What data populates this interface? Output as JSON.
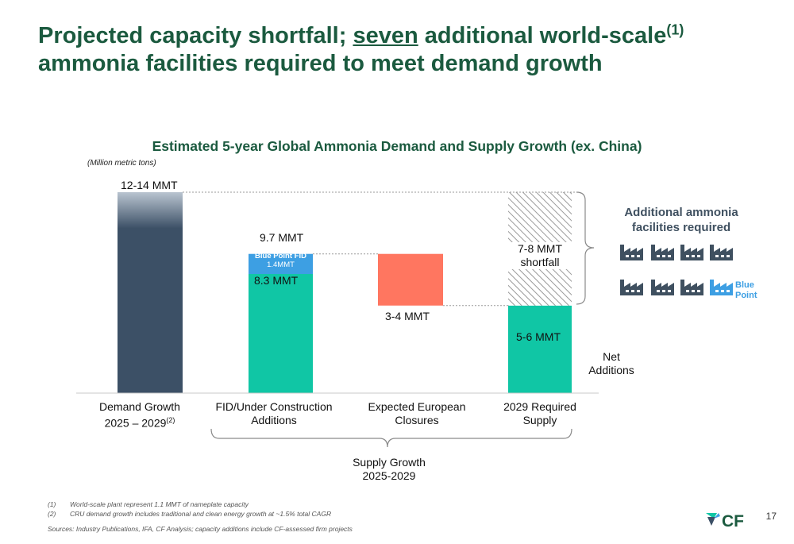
{
  "slide": {
    "title_part1": "Projected capacity shortfall; ",
    "title_emph": "seven",
    "title_part2": " additional world-scale",
    "title_sup": "(1)",
    "title_line2": "ammonia facilities required to meet demand growth",
    "page_number": "17"
  },
  "chart_data": {
    "type": "bar",
    "subtype": "waterfall",
    "title": "Estimated 5-year Global Ammonia Demand and Supply Growth (ex. China)",
    "units_note": "(Million metric tons)",
    "categories": [
      {
        "line1": "Demand Growth",
        "line2": "2025 – 2029",
        "sup": "(2)"
      },
      {
        "line1": "FID/Under Construction",
        "line2": "Additions",
        "sup": ""
      },
      {
        "line1": "Expected European",
        "line2": "Closures",
        "sup": ""
      },
      {
        "line1": "2029 Required",
        "line2": "Supply",
        "sup": ""
      }
    ],
    "ylim": [
      0,
      14
    ],
    "bars": [
      {
        "name": "Demand Growth",
        "base": 0,
        "value": 14,
        "color": "#3c5066",
        "label": "12-14 MMT"
      },
      {
        "name": "FID/Under Construction",
        "base": 0,
        "value": 8.3,
        "color": "#10c6a5",
        "label": "8.3 MMT"
      },
      {
        "name": "Blue Point FID",
        "base": 8.3,
        "value": 1.4,
        "color": "#3d9fe3",
        "label": "Blue Point FID",
        "sublabel": "1.4MMT"
      },
      {
        "name": "Expected European Closures",
        "base": 6.1,
        "value": 3.6,
        "color": "#ff7660",
        "label": "3-4 MMT"
      },
      {
        "name": "Net Additions",
        "base": 0,
        "value": 6.1,
        "color": "#10c6a5",
        "label": "5-6 MMT"
      },
      {
        "name": "Shortfall",
        "base": 6.1,
        "value": 7.9,
        "color": "#hatch",
        "label": "7-8 MMT",
        "label2": "shortfall"
      }
    ],
    "total_label": "9.7 MMT",
    "net_additions_label": "Net",
    "net_additions_label2": "Additions",
    "supply_growth_label": "Supply Growth",
    "supply_growth_label2": "2025-2029"
  },
  "callout": {
    "line1": "Additional ammonia",
    "line2": "facilities required",
    "blue_point_line1": "Blue",
    "blue_point_line2": "Point",
    "facility_count": 7,
    "facility_icon": "factory-icon",
    "facility_color": "#3f5060",
    "blue_point_color": "#3d9fe3"
  },
  "footnotes": [
    {
      "num": "(1)",
      "text": "World-scale plant represent 1.1 MMT of nameplate capacity"
    },
    {
      "num": "(2)",
      "text": "CRU demand growth includes traditional and clean energy growth at ~1.5% total CAGR"
    }
  ],
  "sources": "Sources: Industry Publications, IFA, CF Analysis; capacity additions include CF-assessed firm projects",
  "logo": {
    "text": "CF"
  }
}
